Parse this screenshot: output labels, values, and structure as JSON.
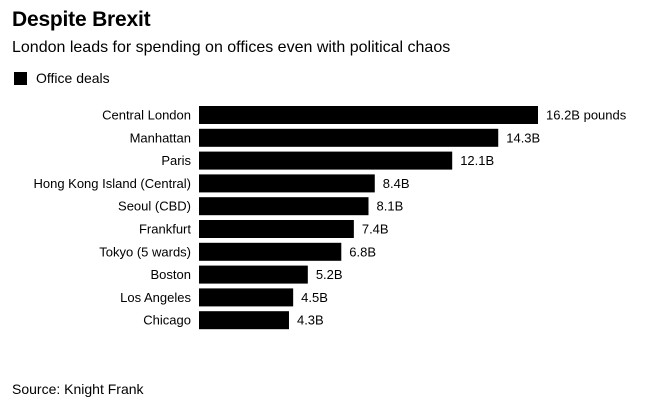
{
  "chart_data": {
    "type": "bar",
    "orientation": "horizontal",
    "title": "Despite Brexit",
    "subtitle": "London leads for spending on offices even with political chaos",
    "legend": [
      "Office deals"
    ],
    "legend_position": "top-left",
    "categories": [
      "Central London",
      "Manhattan",
      "Paris",
      "Hong Kong Island (Central)",
      "Seoul (CBD)",
      "Frankfurt",
      "Tokyo (5 wards)",
      "Boston",
      "Los Angeles",
      "Chicago"
    ],
    "series": [
      {
        "name": "Office deals",
        "values": [
          16.2,
          14.3,
          12.1,
          8.4,
          8.1,
          7.4,
          6.8,
          5.2,
          4.5,
          4.3
        ],
        "labels": [
          "16.2B pounds",
          "14.3B",
          "12.1B",
          "8.4B",
          "8.1B",
          "7.4B",
          "6.8B",
          "5.2B",
          "4.5B",
          "4.3B"
        ],
        "color": "#000000"
      }
    ],
    "xlim": [
      0,
      16.2
    ],
    "grid": false,
    "source": "Source: Knight Frank"
  }
}
